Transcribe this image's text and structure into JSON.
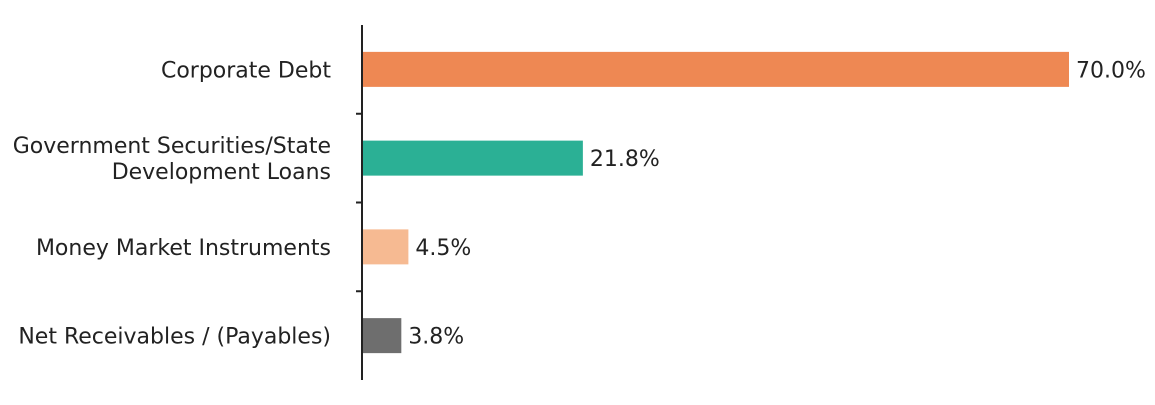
{
  "chart_data": {
    "type": "bar",
    "orientation": "horizontal",
    "categories": [
      [
        "Corporate Debt"
      ],
      [
        "Government Securities/State",
        "Development Loans"
      ],
      [
        "Money Market Instruments"
      ],
      [
        "Net Receivables / (Payables)"
      ]
    ],
    "values": [
      70.0,
      21.8,
      4.5,
      3.8
    ],
    "value_labels": [
      "70.0%",
      "21.8%",
      "4.5%",
      "3.8%"
    ],
    "colors": [
      "#EE8853",
      "#2BB095",
      "#F6BA92",
      "#6E6E6E"
    ],
    "xlim": [
      0,
      70
    ],
    "grid": false,
    "legend": "none",
    "title": "",
    "xlabel": "",
    "ylabel": ""
  }
}
